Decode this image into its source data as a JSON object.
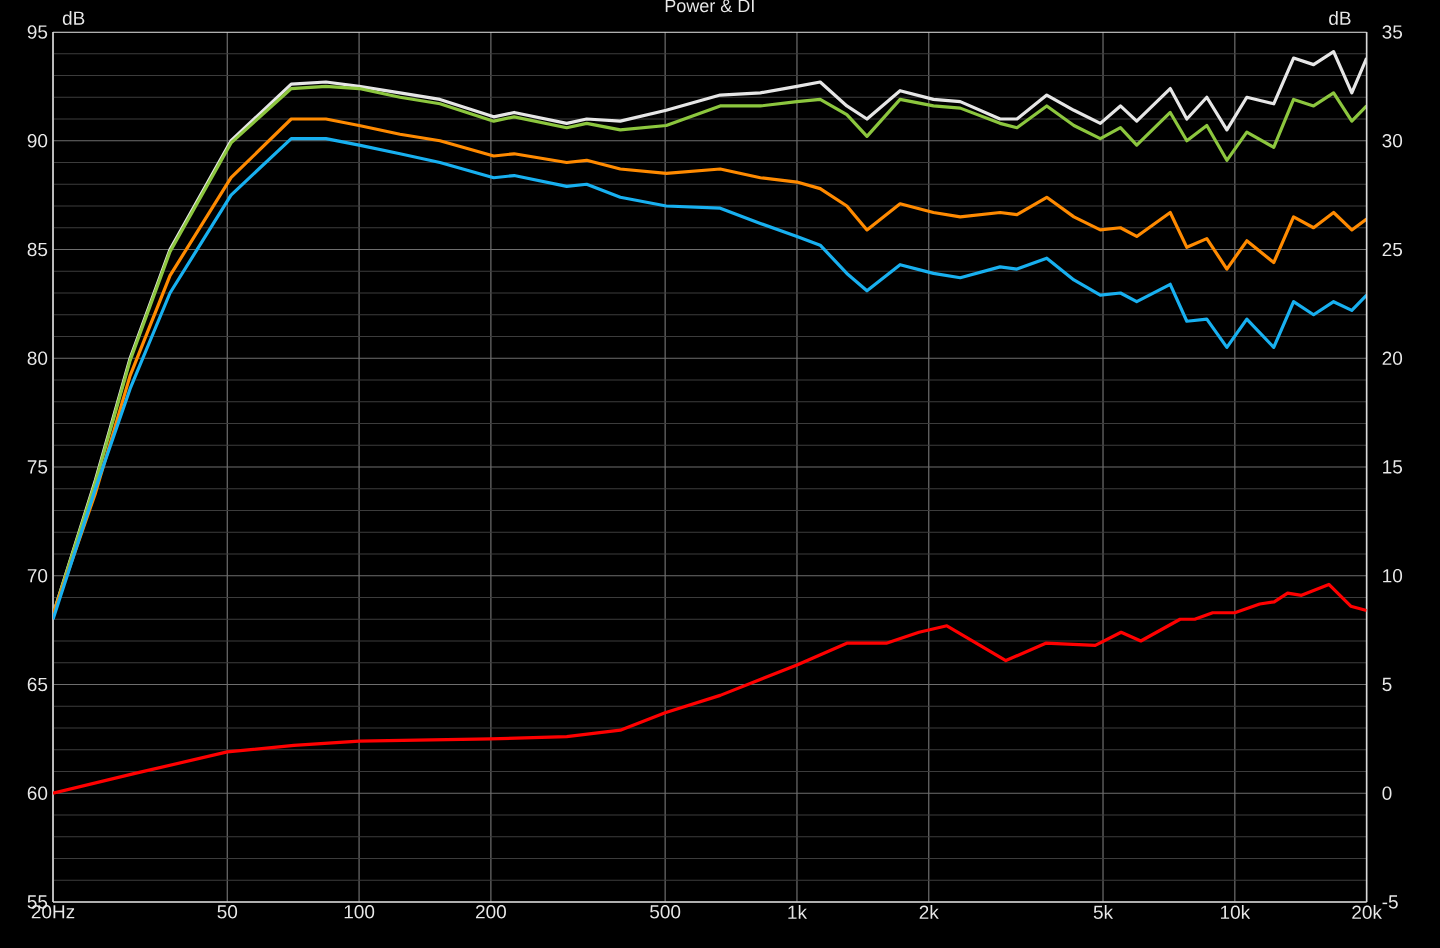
{
  "chart_data": {
    "type": "line",
    "title": "Power & DI",
    "ylabel": "dB",
    "y2label": "dB",
    "log": "x",
    "grid": true,
    "xlim": [
      20,
      20000
    ],
    "ylim": [
      55,
      95
    ],
    "y2lim": [
      -5,
      35
    ],
    "xticks": [
      {
        "value": 20,
        "label": "20Hz"
      },
      50,
      100,
      200,
      500,
      {
        "value": 1000,
        "label": "1k"
      },
      {
        "value": 2000,
        "label": "2k"
      },
      {
        "value": 5000,
        "label": "5k"
      },
      {
        "value": 10000,
        "label": "10k"
      },
      {
        "value": 20000,
        "label": "20k"
      }
    ],
    "yticks": [
      55,
      60,
      65,
      70,
      75,
      80,
      85,
      90,
      95
    ],
    "y2ticks": [
      -5,
      0,
      5,
      10,
      15,
      20,
      25,
      30,
      35
    ],
    "x": [
      20,
      25,
      30,
      37,
      51,
      70,
      84,
      100,
      124,
      153,
      203,
      226,
      298,
      331,
      395,
      503,
      668,
      825,
      1000,
      1130,
      1300,
      1445,
      1720,
      2050,
      2360,
      2910,
      3180,
      3720,
      4290,
      4930,
      5480,
      5970,
      7120,
      7770,
      8630,
      9590,
      10650,
      12270,
      13620,
      15130,
      16810,
      18500,
      20000
    ],
    "series": [
      {
        "color": "#e6e6e6",
        "values": [
          68.2,
          74.4,
          80,
          85,
          90,
          92.6,
          92.7,
          92.5,
          92.2,
          91.9,
          91.1,
          91.3,
          90.8,
          91.0,
          90.9,
          91.4,
          92.1,
          92.2,
          92.5,
          92.7,
          91.6,
          91.0,
          92.3,
          91.9,
          91.8,
          91.0,
          91.0,
          92.1,
          91.4,
          90.8,
          91.6,
          90.9,
          92.4,
          91.0,
          92.0,
          90.5,
          92.0,
          91.7,
          93.8,
          93.5,
          94.1,
          92.2,
          93.8
        ]
      },
      {
        "color": "#8cc63e",
        "values": [
          68.2,
          74.3,
          79.9,
          84.9,
          89.9,
          92.4,
          92.5,
          92.4,
          92.0,
          91.7,
          90.9,
          91.1,
          90.6,
          90.8,
          90.5,
          90.7,
          91.6,
          91.6,
          91.8,
          91.9,
          91.2,
          90.2,
          91.9,
          91.6,
          91.5,
          90.8,
          90.6,
          91.6,
          90.7,
          90.1,
          90.6,
          89.8,
          91.3,
          90.0,
          90.7,
          89.1,
          90.4,
          89.7,
          91.9,
          91.6,
          92.2,
          90.9,
          91.6
        ]
      },
      {
        "color": "#ff8a00",
        "values": [
          68.2,
          73.8,
          79.2,
          83.8,
          88.3,
          91.0,
          91.0,
          90.7,
          90.3,
          90.0,
          89.3,
          89.4,
          89.0,
          89.1,
          88.7,
          88.5,
          88.7,
          88.3,
          88.1,
          87.8,
          87.0,
          85.9,
          87.1,
          86.7,
          86.5,
          86.7,
          86.6,
          87.4,
          86.5,
          85.9,
          86.0,
          85.6,
          86.7,
          85.1,
          85.5,
          84.1,
          85.4,
          84.4,
          86.5,
          86.0,
          86.7,
          85.9,
          86.4
        ]
      },
      {
        "color": "#18b0f0",
        "values": [
          68.0,
          74.0,
          78.6,
          83.0,
          87.5,
          90.1,
          90.1,
          89.8,
          89.4,
          89.0,
          88.3,
          88.4,
          87.9,
          88.0,
          87.4,
          87.0,
          86.9,
          86.2,
          85.6,
          85.2,
          83.9,
          83.1,
          84.3,
          83.9,
          83.7,
          84.2,
          84.1,
          84.6,
          83.6,
          82.9,
          83.0,
          82.6,
          83.4,
          81.7,
          81.8,
          80.5,
          81.8,
          80.5,
          82.6,
          82.0,
          82.6,
          82.2,
          82.9
        ]
      },
      {
        "color": "#ff0000",
        "axis": "y2",
        "x": [
          20,
          30.6,
          50,
          71,
          100,
          200,
          298,
          395,
          500,
          668,
          1000,
          1300,
          1600,
          1900,
          2200,
          3000,
          3700,
          4800,
          5500,
          6100,
          7500,
          8100,
          8900,
          10000,
          11400,
          12300,
          13200,
          14200,
          16400,
          18400,
          20000
        ],
        "values": [
          0,
          0.9,
          1.9,
          2.2,
          2.4,
          2.5,
          2.6,
          2.9,
          3.7,
          4.5,
          5.9,
          6.9,
          6.9,
          7.4,
          7.7,
          6.1,
          6.9,
          6.8,
          7.4,
          7.0,
          8.0,
          8.0,
          8.3,
          8.3,
          8.7,
          8.8,
          9.2,
          9.1,
          9.6,
          8.6,
          8.4
        ]
      }
    ]
  }
}
